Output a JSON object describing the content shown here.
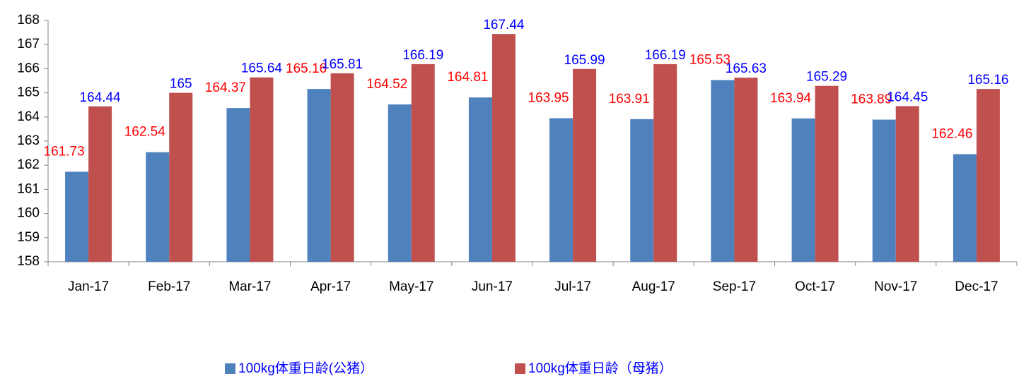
{
  "chart_data": {
    "type": "bar",
    "categories": [
      "Jan-17",
      "Feb-17",
      "Mar-17",
      "Apr-17",
      "May-17",
      "Jun-17",
      "Jul-17",
      "Aug-17",
      "Sep-17",
      "Oct-17",
      "Nov-17",
      "Dec-17"
    ],
    "series": [
      {
        "name": "100kg体重日龄(公猪）",
        "color": "#4f81bd",
        "label_color": "#ff0000",
        "values": [
          161.73,
          162.54,
          164.37,
          165.16,
          164.52,
          164.81,
          163.95,
          163.91,
          165.53,
          163.94,
          163.89,
          162.46
        ]
      },
      {
        "name": "100kg体重日龄（母猪）",
        "color": "#c0504d",
        "label_color": "#0000ff",
        "values": [
          164.44,
          165,
          165.64,
          165.81,
          166.19,
          167.44,
          165.99,
          166.19,
          165.63,
          165.29,
          164.45,
          165.16
        ]
      }
    ],
    "ylim": [
      158,
      168
    ],
    "yticks": [
      158,
      159,
      160,
      161,
      162,
      163,
      164,
      165,
      166,
      167,
      168
    ],
    "grid": false,
    "legend": "bottom",
    "legend_text_color": "#0000ff"
  }
}
